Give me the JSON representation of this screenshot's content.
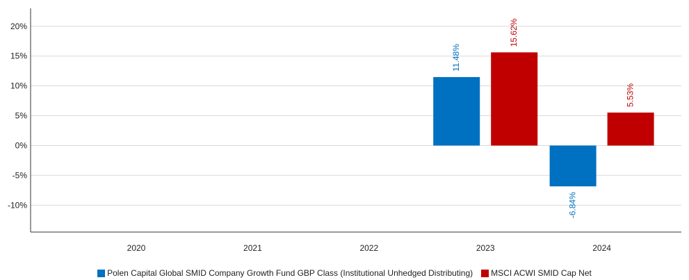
{
  "chart_data": {
    "type": "bar",
    "categories": [
      "2020",
      "2021",
      "2022",
      "2023",
      "2024"
    ],
    "series": [
      {
        "name": "Polen Capital Global SMID Company Growth Fund GBP Class (Institutional Unhedged Distributing)",
        "color": "#0070c0",
        "values": [
          null,
          null,
          null,
          11.48,
          -6.84
        ],
        "labels": [
          "",
          "",
          "",
          "11.48%",
          "-6.84%"
        ]
      },
      {
        "name": "MSCI ACWI SMID Cap Net",
        "color": "#c00000",
        "values": [
          null,
          null,
          null,
          15.62,
          5.53
        ],
        "labels": [
          "",
          "",
          "",
          "15.62%",
          "5.53%"
        ]
      }
    ],
    "ylim": [
      -14.5,
      23
    ],
    "yticks": [
      20,
      15,
      10,
      5,
      0,
      -5,
      -10
    ],
    "ytick_labels": [
      "20%",
      "15%",
      "10%",
      "5%",
      "0%",
      "-5%",
      "-10%"
    ],
    "grid": true,
    "legend_position": "bottom"
  }
}
